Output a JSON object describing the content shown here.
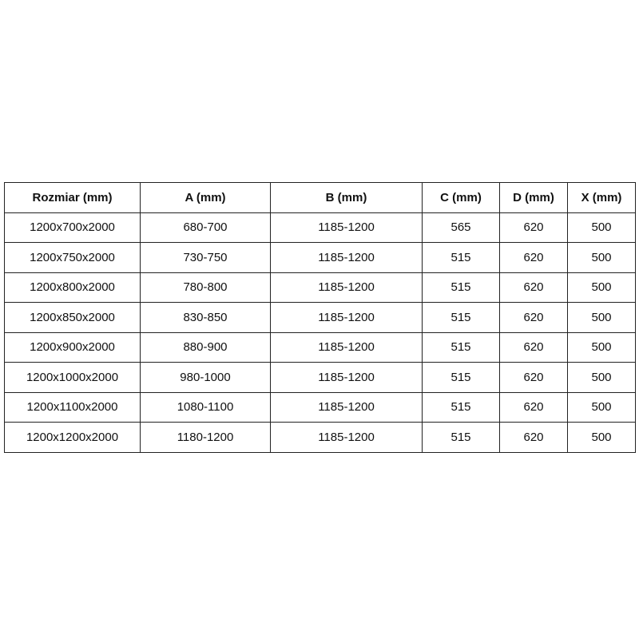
{
  "table": {
    "header": [
      "Rozmiar (mm)",
      "A (mm)",
      "B (mm)",
      "C (mm)",
      "D (mm)",
      "X (mm)"
    ],
    "rows": [
      [
        "1200x700x2000",
        "680-700",
        "1185-1200",
        "565",
        "620",
        "500"
      ],
      [
        "1200x750x2000",
        "730-750",
        "1185-1200",
        "515",
        "620",
        "500"
      ],
      [
        "1200x800x2000",
        "780-800",
        "1185-1200",
        "515",
        "620",
        "500"
      ],
      [
        "1200x850x2000",
        "830-850",
        "1185-1200",
        "515",
        "620",
        "500"
      ],
      [
        "1200x900x2000",
        "880-900",
        "1185-1200",
        "515",
        "620",
        "500"
      ],
      [
        "1200x1000x2000",
        "980-1000",
        "1185-1200",
        "515",
        "620",
        "500"
      ],
      [
        "1200x1100x2000",
        "1080-1100",
        "1185-1200",
        "515",
        "620",
        "500"
      ],
      [
        "1200x1200x2000",
        "1180-1200",
        "1185-1200",
        "515",
        "620",
        "500"
      ]
    ]
  }
}
